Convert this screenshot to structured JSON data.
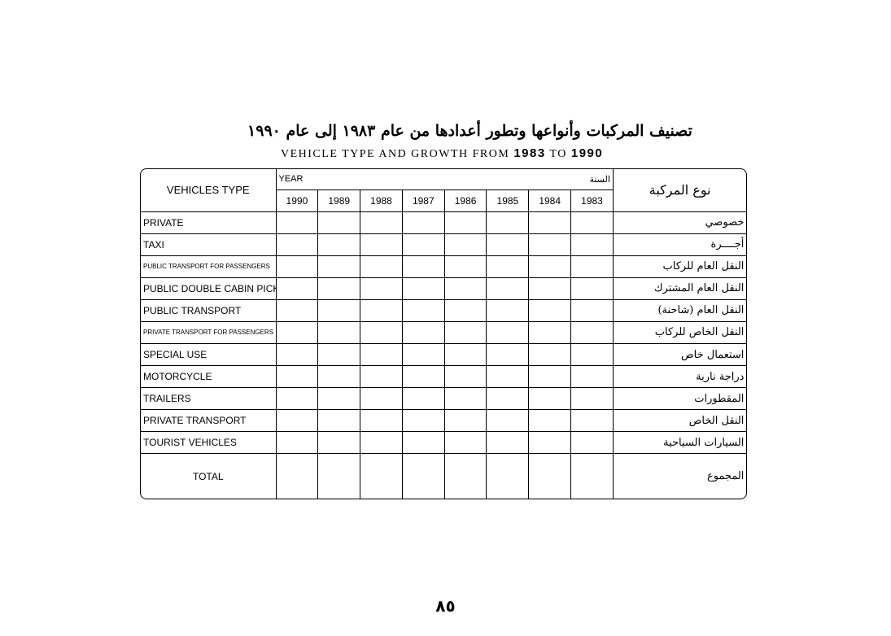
{
  "title_ar": "تصنيف المركبات وأنواعها وتطور أعدادها من عام ١٩٨٣ إلى عام ١٩٩٠",
  "title_en": {
    "text": "VEHICLE TYPE AND GROWTH FROM",
    "from": "1983",
    "to_word": "TO",
    "to": "1990"
  },
  "table": {
    "header_en": "VEHICLES TYPE",
    "header_ar": "نوع المركبة",
    "year_label_en": "YEAR",
    "year_label_ar": "السنة",
    "years": [
      "1990",
      "1989",
      "1988",
      "1987",
      "1986",
      "1985",
      "1984",
      "1983"
    ],
    "rows": [
      {
        "en": "PRIVATE",
        "ar": "خصوصي"
      },
      {
        "en": "TAXI",
        "ar": "أجــــرة"
      },
      {
        "en": "PUBLIC TRANSPORT FOR PASSENGERS",
        "ar": "النقل العام للركاب"
      },
      {
        "en": "PUBLIC DOUBLE CABIN PICKUP",
        "ar": "النقل العام المشترك"
      },
      {
        "en": "PUBLIC TRANSPORT",
        "ar": "النقل العام (شاحنة)"
      },
      {
        "en": "PRIVATE TRANSPORT FOR PASSENGERS",
        "ar": "النقل الخاص للركاب"
      },
      {
        "en": "SPECIAL USE",
        "ar": "استعمال خاص"
      },
      {
        "en": "MOTORCYCLE",
        "ar": "دراجة نارية"
      },
      {
        "en": "TRAILERS",
        "ar": "المقطورات"
      },
      {
        "en": "PRIVATE TRANSPORT",
        "ar": "النقل الخاص"
      },
      {
        "en": "TOURIST VEHICLES",
        "ar": "السيارات السياحية"
      }
    ],
    "total_en": "TOTAL",
    "total_ar": "المجموع"
  },
  "page_number": "٨٥"
}
